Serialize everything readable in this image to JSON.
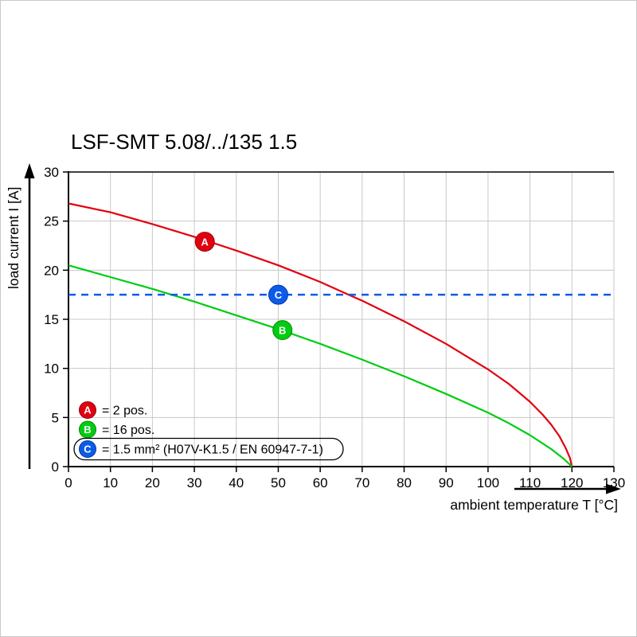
{
  "page": {
    "background": "#ffffff",
    "border_color": "#c9c9c9"
  },
  "chart_data": {
    "type": "line",
    "title": "LSF-SMT 5.08/../135 1.5",
    "xlabel": "ambient temperature T [°C]",
    "ylabel": "load current I [A]",
    "xlim": [
      0,
      130
    ],
    "ylim": [
      0,
      30
    ],
    "x_ticks": [
      0,
      10,
      20,
      30,
      40,
      50,
      60,
      70,
      80,
      90,
      100,
      110,
      120,
      130
    ],
    "y_ticks": [
      0,
      5,
      10,
      15,
      20,
      25,
      30
    ],
    "grid": true,
    "grid_color": "#c8c8c8",
    "axis_color": "#000000",
    "series": [
      {
        "name": "A",
        "label": "= 2 pos.",
        "color": "#e2000f",
        "edge": "#8f0010",
        "points": [
          [
            0,
            26.8
          ],
          [
            10,
            25.9
          ],
          [
            20,
            24.7
          ],
          [
            30,
            23.4
          ],
          [
            40,
            22.0
          ],
          [
            50,
            20.5
          ],
          [
            60,
            18.8
          ],
          [
            66.8,
            17.5
          ],
          [
            70,
            16.9
          ],
          [
            80,
            14.8
          ],
          [
            90,
            12.5
          ],
          [
            100,
            9.9
          ],
          [
            105,
            8.4
          ],
          [
            110,
            6.6
          ],
          [
            113,
            5.3
          ],
          [
            115,
            4.3
          ],
          [
            117,
            3.1
          ],
          [
            118.5,
            1.9
          ],
          [
            119.5,
            0.9
          ],
          [
            120,
            0
          ]
        ],
        "marker": {
          "letter": "A",
          "x": 32.5,
          "y": 22.9
        }
      },
      {
        "name": "B",
        "label": "= 16 pos.",
        "color": "#00cc11",
        "edge": "#008a00",
        "points": [
          [
            0,
            20.5
          ],
          [
            10,
            19.3
          ],
          [
            20,
            18.1
          ],
          [
            24.6,
            17.5
          ],
          [
            30,
            16.8
          ],
          [
            40,
            15.4
          ],
          [
            50,
            14.0
          ],
          [
            60,
            12.5
          ],
          [
            70,
            10.9
          ],
          [
            80,
            9.2
          ],
          [
            90,
            7.4
          ],
          [
            100,
            5.5
          ],
          [
            105,
            4.4
          ],
          [
            110,
            3.2
          ],
          [
            115,
            1.8
          ],
          [
            118,
            0.8
          ],
          [
            120,
            0
          ]
        ],
        "marker": {
          "letter": "B",
          "x": 51,
          "y": 13.9
        }
      },
      {
        "name": "C",
        "label": "= 1.5 mm² (H07V-K1.5 / EN 60947-7-1)",
        "color": "#0d5be8",
        "edge": "#0038a8",
        "style": "dashed",
        "y_value": 17.5,
        "marker": {
          "letter": "C",
          "x": 50,
          "y": 17.5
        },
        "boxed": true
      }
    ]
  }
}
